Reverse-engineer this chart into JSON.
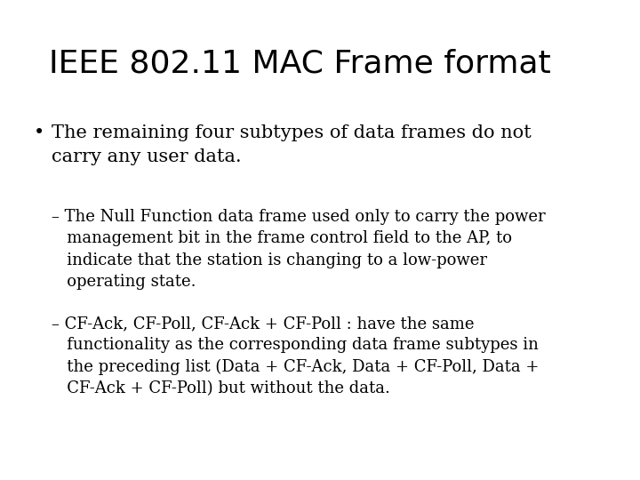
{
  "title": "IEEE 802.11 MAC Frame format",
  "title_fontsize": 26,
  "title_fontweight": "normal",
  "background_color": "#ffffff",
  "text_color": "#000000",
  "title_font": "Liberation Sans",
  "body_font": "DejaVu Serif",
  "bullet_text": "The remaining four subtypes of data frames do not\ncarry any user data.",
  "bullet_fontsize": 15,
  "sub1_line1": "– The Null Function data frame used only to carry the power",
  "sub1_line2": "   management bit in the frame control field to the AP, to",
  "sub1_line3": "   indicate that the station is changing to a low-power",
  "sub1_line4": "   operating state.",
  "sub2_line1": "– CF-Ack, CF-Poll, CF-Ack + CF-Poll : have the same",
  "sub2_line2": "   functionality as the corresponding data frame subtypes in",
  "sub2_line3": "   the preceding list (Data + CF-Ack, Data + CF-Poll, Data +",
  "sub2_line4": "   CF-Ack + CF-Poll) but without the data.",
  "sub_fontsize": 13
}
